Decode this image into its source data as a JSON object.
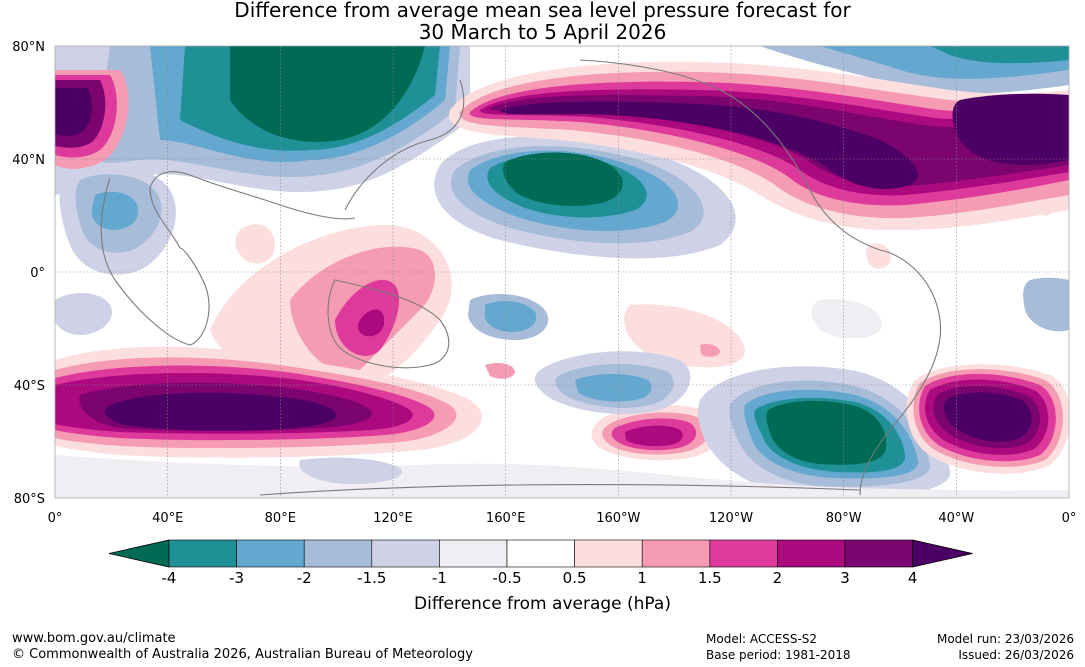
{
  "title_line1": "Difference from average mean sea level pressure forecast for",
  "title_line2": "30 March to 5 April 2026",
  "lat_labels": [
    "80°N",
    "40°N",
    "0°",
    "40°S",
    "80°S"
  ],
  "lon_labels": [
    "0°",
    "40°E",
    "80°E",
    "120°E",
    "160°E",
    "160°W",
    "120°W",
    "80°W",
    "40°W",
    "0°"
  ],
  "colorbar": {
    "label": "Difference from average (hPa)",
    "ticks": [
      "-4",
      "-3",
      "-2",
      "-1.5",
      "-1",
      "-0.5",
      "0.5",
      "1",
      "1.5",
      "2",
      "3",
      "4"
    ],
    "colors": [
      "#006b55",
      "#1f9196",
      "#64a8d0",
      "#a7bcd9",
      "#cfd2e6",
      "#f0edf3",
      "#ffffff",
      "#fddede",
      "#f59bb3",
      "#dd3a9b",
      "#ab0a7e",
      "#7c046f",
      "#4c0064"
    ]
  },
  "footer": {
    "url": "www.bom.gov.au/climate",
    "copyright": "© Commonwealth of Australia 2026, Australian Bureau of Meteorology",
    "model": "Model: ACCESS-S2",
    "base_period": "Base period: 1981-2018",
    "model_run": "Model run: 23/03/2026",
    "issued": "Issued: 26/03/2026"
  }
}
